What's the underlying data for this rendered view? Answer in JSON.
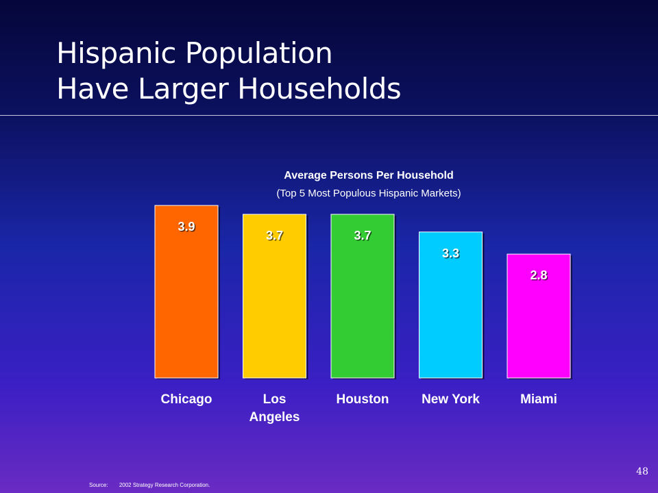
{
  "slide": {
    "title_line1": "Hispanic Population",
    "title_line2": "Have Larger Households",
    "page_number": "48",
    "source_label": "Source:",
    "source_text": "2002 Strategy Research Corporation."
  },
  "chart_data": {
    "type": "bar",
    "title": "Average Persons Per Household",
    "subtitle": "(Top 5 Most Populous Hispanic Markets)",
    "categories": [
      [
        "Chicago"
      ],
      [
        "Los",
        "Angeles"
      ],
      [
        "Houston"
      ],
      [
        "New York"
      ],
      [
        "Miami"
      ]
    ],
    "values": [
      3.9,
      3.7,
      3.7,
      3.3,
      2.8
    ],
    "value_labels": [
      "3.9",
      "3.7",
      "3.7",
      "3.3",
      "2.8"
    ],
    "colors": [
      "#ff6600",
      "#ffcc00",
      "#33cc33",
      "#00ccff",
      "#ff00ff"
    ],
    "xlabel": "",
    "ylabel": "",
    "grid": false,
    "legend": "none"
  }
}
